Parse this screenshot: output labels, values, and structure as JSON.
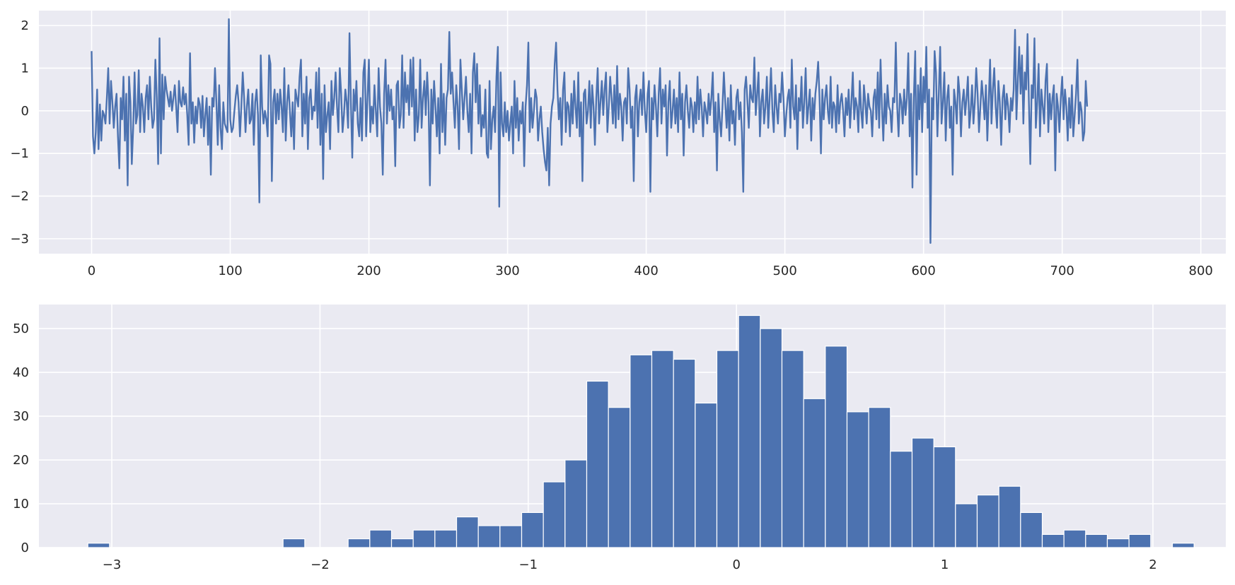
{
  "chart_data": [
    {
      "type": "line",
      "title": "",
      "xlabel": "",
      "ylabel": "",
      "xlim": [
        -38,
        818
      ],
      "ylim": [
        -3.35,
        2.35
      ],
      "xticks": [
        0,
        100,
        200,
        300,
        400,
        500,
        600,
        700,
        800
      ],
      "yticks": [
        2,
        1,
        0,
        -1,
        -2,
        -3
      ],
      "grid": true,
      "series": [
        {
          "color": "#4c72b0",
          "x_start": 0,
          "x_step": 1,
          "values": [
            1.4,
            -0.6,
            -1.0,
            -0.5,
            0.5,
            -0.9,
            0.15,
            -0.7,
            0.0,
            -0.1,
            -0.3,
            0.3,
            1.0,
            -0.3,
            0.7,
            0.2,
            -0.4,
            0.1,
            0.4,
            -0.6,
            -1.35,
            0.3,
            -0.2,
            0.8,
            -0.7,
            0.4,
            -1.75,
            0.8,
            0.2,
            -1.25,
            -0.4,
            0.9,
            -0.3,
            -0.1,
            0.95,
            -0.5,
            0.4,
            0.1,
            -0.5,
            0.3,
            0.6,
            -0.2,
            0.8,
            0.1,
            -0.4,
            -0.2,
            1.2,
            0.3,
            -1.25,
            1.7,
            -1.0,
            0.85,
            -0.2,
            0.8,
            0.5,
            0.3,
            0.1,
            0.45,
            0.0,
            0.3,
            0.6,
            0.1,
            -0.5,
            0.7,
            0.2,
            0.1,
            0.55,
            0.15,
            0.4,
            -0.1,
            -0.8,
            1.35,
            -0.3,
            0.2,
            -0.75,
            0.1,
            -0.3,
            0.3,
            0.15,
            -0.4,
            0.35,
            -0.6,
            -0.1,
            0.3,
            -0.8,
            0.1,
            -1.5,
            0.3,
            0.1,
            1.0,
            0.2,
            -0.8,
            0.6,
            -0.4,
            -0.9,
            0.2,
            -0.3,
            -0.4,
            -0.5,
            2.15,
            -0.2,
            -0.5,
            -0.4,
            0.0,
            0.35,
            0.6,
            0.2,
            -0.6,
            0.1,
            0.9,
            0.3,
            -0.5,
            0.1,
            0.5,
            -0.3,
            -0.2,
            0.4,
            -0.8,
            0.2,
            0.5,
            -0.1,
            -2.15,
            1.3,
            0.1,
            -0.3,
            0.0,
            -0.2,
            -0.6,
            1.3,
            1.1,
            -1.65,
            0.2,
            0.5,
            -0.3,
            0.4,
            -0.2,
            0.5,
            0.1,
            -0.5,
            1.0,
            -0.7,
            0.2,
            0.6,
            0.0,
            -0.6,
            0.2,
            -0.9,
            0.5,
            0.3,
            0.1,
            0.8,
            1.2,
            -0.6,
            0.4,
            -0.3,
            0.8,
            -0.9,
            0.3,
            0.5,
            -0.2,
            0.1,
            0.0,
            0.9,
            -0.4,
            1.0,
            -0.8,
            0.4,
            -1.6,
            0.6,
            -0.5,
            -0.1,
            0.2,
            -0.9,
            0.7,
            -0.1,
            0.3,
            0.9,
            0.1,
            -0.5,
            1.0,
            0.4,
            -0.5,
            -0.1,
            0.5,
            0.2,
            -0.4,
            1.82,
            0.2,
            -1.1,
            0.5,
            0.0,
            0.7,
            -0.3,
            -0.6,
            0.3,
            -0.7,
            0.9,
            1.2,
            -0.6,
            0.3,
            1.2,
            -0.5,
            0.1,
            -0.3,
            0.6,
            0.0,
            -0.6,
            1.0,
            0.1,
            -0.3,
            -1.5,
            0.4,
            1.2,
            -0.3,
            0.6,
            0.0,
            0.5,
            -0.2,
            0.1,
            -1.3,
            0.6,
            0.7,
            -0.4,
            -0.1,
            1.3,
            -0.4,
            0.9,
            0.2,
            0.6,
            -0.1,
            1.2,
            0.1,
            1.25,
            -0.7,
            0.5,
            -0.5,
            -0.1,
            1.2,
            -0.4,
            0.3,
            0.7,
            -0.1,
            0.9,
            0.2,
            -1.75,
            0.5,
            -0.3,
            0.7,
            0.1,
            -0.6,
            0.3,
            -1.0,
            1.1,
            -0.5,
            0.4,
            -0.8,
            0.3,
            0.5,
            1.85,
            0.4,
            0.9,
            0.2,
            -0.4,
            0.6,
            0.1,
            -0.9,
            1.2,
            0.5,
            -0.2,
            0.3,
            0.8,
            0.0,
            -0.5,
            0.4,
            -1.0,
            0.9,
            1.35,
            0.2,
            1.1,
            -0.3,
            0.6,
            -0.6,
            -0.1,
            -0.4,
            0.5,
            -1.0,
            -1.1,
            0.7,
            -0.9,
            -0.2,
            0.1,
            -0.5,
            0.8,
            1.5,
            -2.25,
            0.9,
            -0.3,
            -0.6,
            0.2,
            -0.5,
            0.0,
            -0.7,
            -0.3,
            0.1,
            -1.0,
            0.7,
            -0.4,
            0.3,
            -0.7,
            0.0,
            -0.3,
            0.2,
            -1.3,
            0.1,
            0.6,
            1.6,
            -0.5,
            0.3,
            -0.4,
            0.0,
            0.5,
            0.3,
            -0.7,
            -0.2,
            0.1,
            -0.5,
            -0.9,
            -1.2,
            -1.4,
            -0.4,
            -1.75,
            -0.3,
            0.1,
            0.3,
            1.1,
            1.6,
            0.5,
            -0.2,
            0.3,
            -0.8,
            0.5,
            0.9,
            -0.5,
            0.2,
            0.1,
            -0.6,
            0.4,
            -0.3,
            0.7,
            0.1,
            -0.4,
            0.9,
            -0.6,
            0.2,
            -1.65,
            0.4,
            0.5,
            -0.3,
            0.0,
            0.7,
            -0.4,
            0.6,
            0.1,
            -0.8,
            0.3,
            1.0,
            -0.3,
            0.2,
            0.7,
            -0.1,
            0.5,
            0.9,
            -0.5,
            0.1,
            0.8,
            0.3,
            -0.3,
            0.6,
            -0.4,
            1.05,
            -0.2,
            0.4,
            0.1,
            -0.7,
            0.2,
            0.3,
            -0.3,
            1.0,
            0.5,
            -0.4,
            0.1,
            -1.65,
            0.3,
            0.6,
            -0.6,
            0.2,
            0.5,
            -0.1,
            0.9,
            0.0,
            -0.5,
            0.4,
            0.7,
            -1.9,
            0.3,
            -0.2,
            0.6,
            0.1,
            -0.6,
            0.4,
            1.0,
            -0.3,
            0.5,
            0.1,
            0.6,
            -1.05,
            0.2,
            0.7,
            -0.4,
            0.0,
            0.5,
            -0.3,
            0.3,
            -0.5,
            0.9,
            -0.2,
            0.4,
            -1.05,
            0.2,
            0.6,
            0.0,
            -0.4,
            0.3,
            0.1,
            -0.5,
            0.2,
            -0.3,
            0.8,
            -0.2,
            0.5,
            0.1,
            -0.6,
            0.2,
            0.0,
            -0.3,
            0.4,
            -0.1,
            0.3,
            0.9,
            -0.5,
            0.2,
            -1.4,
            0.4,
            -0.2,
            -0.6,
            0.1,
            0.9,
            0.2,
            -0.4,
            0.3,
            -0.7,
            0.6,
            -0.3,
            0.0,
            -0.8,
            0.3,
            0.5,
            -0.2,
            0.2,
            -0.5,
            -1.9,
            0.5,
            0.8,
            0.2,
            -0.4,
            0.6,
            0.3,
            0.2,
            1.25,
            -0.1,
            0.4,
            0.9,
            -0.6,
            0.2,
            0.5,
            -0.3,
            0.1,
            0.8,
            -0.4,
            0.3,
            1.0,
            0.0,
            -0.5,
            0.6,
            0.1,
            -0.3,
            0.4,
            0.2,
            0.9,
            0.3,
            -0.6,
            -0.1,
            0.3,
            0.5,
            -0.4,
            1.2,
            0.1,
            -0.2,
            0.6,
            -0.9,
            0.3,
            0.0,
            0.8,
            -0.4,
            0.2,
            1.0,
            -0.3,
            0.1,
            0.5,
            -0.7,
            0.3,
            -0.2,
            0.4,
            0.7,
            1.15,
            0.3,
            -1.0,
            0.5,
            -0.2,
            0.3,
            0.6,
            0.0,
            -0.3,
            0.8,
            -0.4,
            0.2,
            0.1,
            -0.5,
            0.6,
            -0.3,
            0.2,
            0.4,
            0.0,
            -0.6,
            0.3,
            -0.1,
            0.5,
            -0.4,
            0.2,
            0.9,
            -0.2,
            0.3,
            0.1,
            -0.5,
            0.7,
            0.0,
            -0.4,
            0.6,
            0.2,
            -0.3,
            0.4,
            0.1,
            0.0,
            -0.6,
            0.3,
            0.5,
            -0.2,
            0.9,
            -0.4,
            1.2,
            0.1,
            -0.7,
            0.4,
            -0.3,
            0.6,
            0.1,
            0.0,
            -0.5,
            0.3,
            0.2,
            1.6,
            0.1,
            -0.6,
            0.4,
            0.2,
            -0.3,
            0.5,
            -0.1,
            0.3,
            1.35,
            -0.6,
            0.4,
            -1.8,
            0.3,
            1.4,
            -1.5,
            0.6,
            -0.2,
            1.0,
            -0.5,
            0.8,
            0.2,
            1.5,
            -0.4,
            0.5,
            -3.1,
            0.3,
            -0.2,
            1.4,
            0.9,
            -0.6,
            0.4,
            1.5,
            -0.3,
            0.2,
            0.9,
            -0.7,
            0.3,
            0.6,
            -0.4,
            0.1,
            -1.5,
            0.5,
            0.2,
            -0.3,
            0.8,
            0.4,
            -0.6,
            0.2,
            0.5,
            -0.1,
            0.3,
            0.8,
            -0.4,
            0.0,
            0.6,
            -0.3,
            0.2,
            1.0,
            0.4,
            -0.5,
            0.1,
            0.7,
            0.3,
            -0.2,
            0.6,
            -0.7,
            0.2,
            1.2,
            -0.3,
            0.5,
            1.0,
            0.1,
            -0.4,
            0.7,
            0.2,
            -0.8,
            0.3,
            0.6,
            -0.2,
            0.4,
            0.1,
            -0.5,
            0.3,
            0.0,
            0.5,
            1.9,
            -0.2,
            0.7,
            1.5,
            0.4,
            1.3,
            -0.3,
            0.9,
            0.5,
            1.8,
            0.2,
            -1.25,
            0.6,
            0.3,
            1.7,
            -0.4,
            0.2,
            1.1,
            -0.6,
            0.5,
            0.1,
            -0.3,
            0.7,
            1.1,
            -0.5,
            0.4,
            -0.2,
            0.3,
            0.6,
            -1.4,
            0.4,
            0.1,
            -0.5,
            0.3,
            0.8,
            -0.2,
            0.5,
            0.1,
            -0.7,
            0.3,
            -0.4,
            0.6,
            -0.6,
            -0.1,
            0.4,
            1.2,
            -0.3,
            0.2,
            0.0,
            -0.7,
            -0.5,
            0.7,
            0.1
          ]
        }
      ]
    },
    {
      "type": "bar",
      "title": "",
      "xlabel": "",
      "ylabel": "",
      "xlim": [
        -3.35,
        2.35
      ],
      "ylim": [
        0,
        55.5
      ],
      "xticks": [
        -3,
        -2,
        -1,
        0,
        1,
        2
      ],
      "yticks": [
        0,
        10,
        20,
        30,
        40,
        50
      ],
      "grid": true,
      "bar_color": "#4c72b0",
      "bins": {
        "start": -3.115,
        "width": 0.10417,
        "counts": [
          1,
          0,
          0,
          0,
          0,
          0,
          0,
          0,
          0,
          2,
          0,
          0,
          2,
          4,
          2,
          4,
          4,
          7,
          5,
          5,
          8,
          15,
          20,
          38,
          32,
          44,
          45,
          43,
          33,
          45,
          53,
          50,
          45,
          34,
          46,
          31,
          32,
          22,
          25,
          23,
          10,
          12,
          14,
          8,
          3,
          4,
          3,
          2,
          3,
          0,
          1
        ]
      }
    }
  ],
  "tick_label_text": {
    "line_x": [
      "0",
      "100",
      "200",
      "300",
      "400",
      "500",
      "600",
      "700",
      "800"
    ],
    "line_y": [
      "2",
      "1",
      "0",
      "−1",
      "−2",
      "−3"
    ],
    "hist_x": [
      "−3",
      "−2",
      "−1",
      "0",
      "1",
      "2"
    ],
    "hist_y": [
      "0",
      "10",
      "20",
      "30",
      "40",
      "50"
    ]
  }
}
